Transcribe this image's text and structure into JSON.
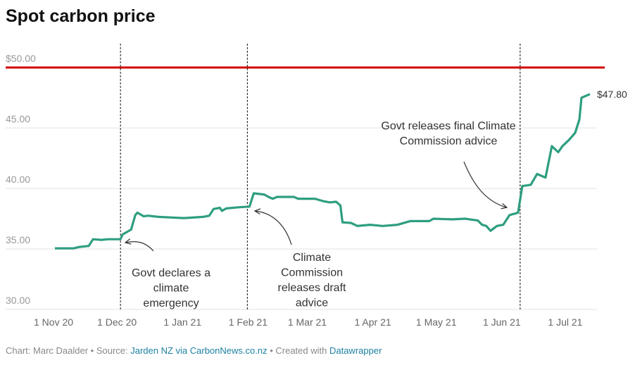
{
  "chart_data": {
    "type": "line",
    "title": "Spot carbon price",
    "x": [
      "2020-11-01",
      "2020-11-10",
      "2020-11-12",
      "2020-11-17",
      "2020-11-19",
      "2020-11-23",
      "2020-11-26",
      "2020-12-02",
      "2020-12-03",
      "2020-12-07",
      "2020-12-09",
      "2020-12-10",
      "2020-12-13",
      "2020-12-15",
      "2020-12-20",
      "2021-01-01",
      "2021-01-10",
      "2021-01-13",
      "2021-01-15",
      "2021-01-18",
      "2021-01-19",
      "2021-01-21",
      "2021-01-27",
      "2021-02-01",
      "2021-02-03",
      "2021-02-08",
      "2021-02-10",
      "2021-02-12",
      "2021-02-14",
      "2021-02-22",
      "2021-02-24",
      "2021-03-04",
      "2021-03-08",
      "2021-03-11",
      "2021-03-14",
      "2021-03-16",
      "2021-03-17",
      "2021-03-21",
      "2021-03-24",
      "2021-03-30",
      "2021-04-05",
      "2021-04-12",
      "2021-04-18",
      "2021-04-27",
      "2021-04-29",
      "2021-05-08",
      "2021-05-14",
      "2021-05-20",
      "2021-05-22",
      "2021-05-24",
      "2021-05-26",
      "2021-05-29",
      "2021-06-01",
      "2021-06-04",
      "2021-06-08",
      "2021-06-10",
      "2021-06-14",
      "2021-06-17",
      "2021-06-21",
      "2021-06-24",
      "2021-06-27",
      "2021-06-29",
      "2021-07-02",
      "2021-07-05",
      "2021-07-07",
      "2021-07-08",
      "2021-07-12"
    ],
    "series": [
      {
        "color": "#2e9e80",
        "values": [
          35.05,
          35.05,
          35.15,
          35.25,
          35.8,
          35.75,
          35.8,
          35.8,
          36.2,
          36.6,
          37.8,
          38.0,
          37.7,
          37.75,
          37.65,
          37.55,
          37.65,
          37.75,
          38.3,
          38.4,
          38.15,
          38.35,
          38.45,
          38.5,
          39.6,
          39.5,
          39.3,
          39.15,
          39.3,
          39.3,
          39.15,
          39.15,
          38.95,
          38.85,
          38.9,
          38.6,
          37.2,
          37.15,
          36.9,
          37.0,
          36.9,
          37.0,
          37.3,
          37.3,
          37.5,
          37.45,
          37.5,
          37.35,
          37.0,
          36.9,
          36.5,
          36.9,
          37.0,
          37.8,
          38.0,
          40.2,
          40.3,
          41.2,
          40.9,
          43.5,
          43.0,
          43.5,
          44.0,
          44.6,
          45.7,
          47.5,
          47.8
        ],
        "value_labels": [
          null,
          null,
          null,
          null,
          null,
          null,
          null,
          null,
          null,
          null,
          null,
          null,
          null,
          null,
          null,
          null,
          null,
          null,
          null,
          null,
          null,
          null,
          null,
          null,
          null,
          null,
          null,
          null,
          null,
          null,
          null,
          null,
          null,
          null,
          null,
          null,
          null,
          null,
          null,
          null,
          null,
          null,
          null,
          null,
          null,
          null,
          null,
          null,
          null,
          null,
          null,
          null,
          null,
          null,
          null,
          null,
          null,
          null,
          null,
          null,
          null,
          null,
          null,
          null,
          null,
          null,
          "$47.80"
        ]
      }
    ],
    "xlim": [
      "2020-10-25",
      "2021-07-15"
    ],
    "xticks": [
      {
        "value": "2020-11-01",
        "label": "1 Nov 20"
      },
      {
        "value": "2020-12-01",
        "label": "1 Dec 20"
      },
      {
        "value": "2021-01-01",
        "label": "1 Jan 21"
      },
      {
        "value": "2021-02-01",
        "label": "1 Feb 21"
      },
      {
        "value": "2021-03-01",
        "label": "1 Mar 21"
      },
      {
        "value": "2021-04-01",
        "label": "1 Apr 21"
      },
      {
        "value": "2021-05-01",
        "label": "1 May 21"
      },
      {
        "value": "2021-06-01",
        "label": "1 Jun 21"
      },
      {
        "value": "2021-07-01",
        "label": "1 Jul 21"
      }
    ],
    "ylim": [
      30,
      50
    ],
    "yticks": [
      {
        "value": 30,
        "label": "30.00"
      },
      {
        "value": 35,
        "label": "35.00"
      },
      {
        "value": 40,
        "label": "40.00"
      },
      {
        "value": 45,
        "label": "45.00"
      },
      {
        "value": 50,
        "label": "$50.00"
      }
    ],
    "grid": true,
    "reference_line": {
      "value": 50,
      "color": "#d10000"
    },
    "annotations": [
      {
        "x": "2020-12-02",
        "text": [
          "Govt declares a",
          "climate",
          "emergency"
        ]
      },
      {
        "x": "2021-01-31",
        "text": [
          "Climate",
          "Commission",
          "releases draft",
          "advice"
        ]
      },
      {
        "x": "2021-06-09",
        "text": [
          "Govt releases final Climate",
          "Commission advice"
        ]
      }
    ],
    "footer": [
      "Chart: Marc Daalder • Source: ",
      "Jarden NZ via CarbonNews.co.nz",
      " • Created with ",
      "Datawrapper"
    ]
  }
}
